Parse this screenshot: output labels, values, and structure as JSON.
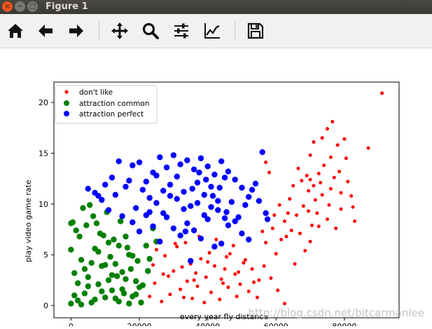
{
  "window": {
    "title": "Figure 1",
    "buttons": {
      "close": "×",
      "minimize": "−",
      "maximize": "□"
    }
  },
  "toolbar": {
    "items": [
      {
        "name": "home",
        "icon": "home-icon"
      },
      {
        "name": "back",
        "icon": "arrow-left-icon"
      },
      {
        "name": "forward",
        "icon": "arrow-right-icon"
      },
      {
        "name": "pan",
        "icon": "move-icon"
      },
      {
        "name": "zoom",
        "icon": "magnifier-icon"
      },
      {
        "name": "configure-subplots",
        "icon": "sliders-icon"
      },
      {
        "name": "edit-axis",
        "icon": "line-chart-icon"
      },
      {
        "name": "save",
        "icon": "floppy-disk-icon"
      }
    ]
  },
  "watermark": "http://blog.csdn.net/bitcarmanlee",
  "chart_data": {
    "type": "scatter",
    "xlabel": "every year fly distance",
    "ylabel": "play video game rate",
    "xlim": [
      -5000,
      96000
    ],
    "ylim": [
      -1.2,
      22
    ],
    "xticks": [
      "0",
      "20000",
      "40000",
      "60000",
      "80000"
    ],
    "yticks": [
      "0",
      "5",
      "10",
      "15",
      "20"
    ],
    "legend_position": "upper-left",
    "series": [
      {
        "name": "don't like",
        "color": "#ff0000",
        "marker_size": "small",
        "points": [
          [
            91000,
            20.9
          ],
          [
            87000,
            15.5
          ],
          [
            76500,
            18.1
          ],
          [
            75000,
            17.4
          ],
          [
            73500,
            16.5
          ],
          [
            80000,
            16.4
          ],
          [
            78000,
            15.8
          ],
          [
            71000,
            16.1
          ],
          [
            70000,
            14.8
          ],
          [
            66500,
            13.5
          ],
          [
            69000,
            12.8
          ],
          [
            73000,
            12.1
          ],
          [
            77000,
            12.6
          ],
          [
            81000,
            12.2
          ],
          [
            82000,
            10.8
          ],
          [
            79000,
            9.5
          ],
          [
            83000,
            8.3
          ],
          [
            75000,
            8.5
          ],
          [
            72000,
            9.1
          ],
          [
            68000,
            9.8
          ],
          [
            64000,
            10.5
          ],
          [
            61000,
            9.9
          ],
          [
            62500,
            8.3
          ],
          [
            59000,
            7.6
          ],
          [
            57000,
            6.2
          ],
          [
            60000,
            5.1
          ],
          [
            63000,
            6.8
          ],
          [
            67000,
            7.1
          ],
          [
            70000,
            6.3
          ],
          [
            72500,
            7.8
          ],
          [
            71500,
            10.4
          ],
          [
            69500,
            11.3
          ],
          [
            65000,
            11.8
          ],
          [
            58000,
            13.1
          ],
          [
            57000,
            14.1
          ],
          [
            55000,
            2.5
          ],
          [
            53000,
            3.6
          ],
          [
            50500,
            4.2
          ],
          [
            48000,
            3.1
          ],
          [
            46000,
            1.8
          ],
          [
            44000,
            2.6
          ],
          [
            42000,
            3.9
          ],
          [
            40500,
            5.2
          ],
          [
            38000,
            4.6
          ],
          [
            36500,
            3.2
          ],
          [
            34000,
            2.4
          ],
          [
            32000,
            1.6
          ],
          [
            30000,
            3.4
          ],
          [
            27500,
            4.9
          ],
          [
            26000,
            6.4
          ],
          [
            24500,
            2.2
          ],
          [
            23000,
            0.9
          ],
          [
            25000,
            5.5
          ],
          [
            29000,
            1.1
          ],
          [
            31000,
            5.8
          ],
          [
            33500,
            6.2
          ],
          [
            35500,
            0.7
          ],
          [
            37000,
            1.9
          ],
          [
            39000,
            0.3
          ],
          [
            41000,
            1.3
          ],
          [
            43500,
            0.6
          ],
          [
            45500,
            4.8
          ],
          [
            47500,
            5.9
          ],
          [
            49500,
            2.1
          ],
          [
            52000,
            1.4
          ],
          [
            54500,
            0.8
          ],
          [
            56500,
            3.9
          ],
          [
            58500,
            2.7
          ],
          [
            60500,
            1.5
          ],
          [
            62500,
            0.2
          ],
          [
            49000,
            3.3
          ],
          [
            51000,
            4.5
          ],
          [
            45000,
            3.6
          ],
          [
            39500,
            2.8
          ],
          [
            35000,
            4.1
          ],
          [
            28500,
            2.9
          ],
          [
            26500,
            0.4
          ],
          [
            33000,
            0.8
          ],
          [
            42500,
            6.5
          ],
          [
            37500,
            6.8
          ],
          [
            30500,
            6.1
          ],
          [
            44500,
            2.2
          ],
          [
            48500,
            0.9
          ],
          [
            53500,
            2.3
          ],
          [
            46500,
            5.1
          ],
          [
            40000,
            4.3
          ],
          [
            36000,
            2.5
          ],
          [
            32500,
            3.8
          ],
          [
            27000,
            3.1
          ],
          [
            24000,
            4.0
          ],
          [
            74000,
            13.8
          ],
          [
            76000,
            11.5
          ],
          [
            78500,
            13.2
          ],
          [
            80500,
            14.5
          ],
          [
            66000,
            8.9
          ],
          [
            64500,
            7.4
          ],
          [
            61500,
            6.5
          ],
          [
            67500,
            12.3
          ],
          [
            69500,
            9.3
          ],
          [
            73500,
            10.9
          ],
          [
            71000,
            11.8
          ],
          [
            75500,
            9.9
          ],
          [
            77500,
            7.6
          ],
          [
            68500,
            5.4
          ],
          [
            65500,
            4.1
          ],
          [
            70500,
            7.9
          ],
          [
            63500,
            9.1
          ],
          [
            59500,
            8.9
          ],
          [
            56000,
            7.3
          ],
          [
            72500,
            13.0
          ],
          [
            76000,
            14.6
          ],
          [
            79000,
            11.1
          ],
          [
            82500,
            9.7
          ],
          [
            70000,
            12.4
          ]
        ]
      },
      {
        "name": "attraction common",
        "color": "#008000",
        "marker_size": "large",
        "points": [
          [
            0,
            0.2
          ],
          [
            2000,
            0.5
          ],
          [
            4000,
            1.2
          ],
          [
            6000,
            0.3
          ],
          [
            8000,
            2.1
          ],
          [
            10000,
            0.8
          ],
          [
            12000,
            1.5
          ],
          [
            14000,
            0.4
          ],
          [
            16000,
            2.6
          ],
          [
            18000,
            0.9
          ],
          [
            20000,
            1.8
          ],
          [
            1000,
            3.2
          ],
          [
            3000,
            4.5
          ],
          [
            5000,
            2.8
          ],
          [
            7000,
            5.6
          ],
          [
            9000,
            3.9
          ],
          [
            11000,
            6.2
          ],
          [
            13000,
            4.1
          ],
          [
            15000,
            3.3
          ],
          [
            17000,
            5.0
          ],
          [
            19000,
            2.4
          ],
          [
            0,
            5.5
          ],
          [
            2500,
            6.8
          ],
          [
            4500,
            7.9
          ],
          [
            6500,
            8.8
          ],
          [
            8500,
            7.1
          ],
          [
            10500,
            9.2
          ],
          [
            12500,
            6.5
          ],
          [
            14500,
            8.3
          ],
          [
            16500,
            5.7
          ],
          [
            500,
            8.2
          ],
          [
            1500,
            7.4
          ],
          [
            3500,
            9.6
          ],
          [
            5500,
            9.9
          ],
          [
            7500,
            8.1
          ],
          [
            9500,
            6.9
          ],
          [
            11500,
            4.8
          ],
          [
            13500,
            2.9
          ],
          [
            15500,
            1.2
          ],
          [
            17500,
            3.6
          ],
          [
            19500,
            4.4
          ],
          [
            21000,
            2.0
          ],
          [
            22000,
            5.9
          ],
          [
            23000,
            4.6
          ],
          [
            24000,
            7.6
          ],
          [
            20500,
            0.3
          ],
          [
            1000,
            1.0
          ],
          [
            3000,
            0.1
          ],
          [
            5000,
            1.9
          ],
          [
            7000,
            0.6
          ],
          [
            9000,
            1.4
          ],
          [
            11000,
            2.5
          ],
          [
            13000,
            0.7
          ],
          [
            15000,
            1.6
          ],
          [
            17000,
            0.2
          ],
          [
            19000,
            1.1
          ],
          [
            6000,
            4.2
          ],
          [
            8000,
            5.3
          ],
          [
            10000,
            4.0
          ],
          [
            12000,
            3.0
          ],
          [
            14000,
            5.9
          ],
          [
            16000,
            6.8
          ],
          [
            18000,
            4.9
          ],
          [
            4000,
            3.6
          ],
          [
            2000,
            2.2
          ],
          [
            0,
            8.1
          ],
          [
            25000,
            6.3
          ],
          [
            22500,
            3.4
          ]
        ]
      },
      {
        "name": "attraction perfect",
        "color": "#0000ff",
        "marker_size": "large",
        "points": [
          [
            31000,
            10.5
          ],
          [
            33000,
            11.2
          ],
          [
            35000,
            9.8
          ],
          [
            37000,
            12.1
          ],
          [
            39000,
            10.9
          ],
          [
            41000,
            11.7
          ],
          [
            43000,
            9.4
          ],
          [
            45000,
            12.6
          ],
          [
            47000,
            10.2
          ],
          [
            29000,
            11.9
          ],
          [
            27000,
            9.1
          ],
          [
            25000,
            12.8
          ],
          [
            23000,
            10.6
          ],
          [
            21000,
            11.4
          ],
          [
            19000,
            9.6
          ],
          [
            17000,
            12.3
          ],
          [
            15000,
            8.8
          ],
          [
            13000,
            10.9
          ],
          [
            11000,
            9.4
          ],
          [
            9000,
            10.4
          ],
          [
            7000,
            11.1
          ],
          [
            5000,
            11.5
          ],
          [
            49000,
            8.7
          ],
          [
            51000,
            9.9
          ],
          [
            53000,
            11.4
          ],
          [
            55000,
            10.3
          ],
          [
            57000,
            9.1
          ],
          [
            57500,
            8.5
          ],
          [
            30000,
            14.8
          ],
          [
            28000,
            13.6
          ],
          [
            32000,
            13.9
          ],
          [
            34000,
            14.3
          ],
          [
            36000,
            13.4
          ],
          [
            38000,
            14.5
          ],
          [
            40000,
            13.7
          ],
          [
            42000,
            12.9
          ],
          [
            44000,
            14.2
          ],
          [
            46000,
            13.2
          ],
          [
            48000,
            12.4
          ],
          [
            50000,
            11.6
          ],
          [
            52000,
            10.7
          ],
          [
            54000,
            12.0
          ],
          [
            56000,
            15.1
          ],
          [
            26000,
            14.6
          ],
          [
            24000,
            13.1
          ],
          [
            22000,
            12.2
          ],
          [
            20000,
            14.1
          ],
          [
            18000,
            13.8
          ],
          [
            16000,
            11.7
          ],
          [
            14000,
            14.2
          ],
          [
            12000,
            12.6
          ],
          [
            10000,
            11.9
          ],
          [
            8000,
            10.8
          ],
          [
            30000,
            7.6
          ],
          [
            32000,
            6.9
          ],
          [
            34000,
            8.1
          ],
          [
            36000,
            7.4
          ],
          [
            38000,
            6.6
          ],
          [
            40000,
            8.5
          ],
          [
            42000,
            5.8
          ],
          [
            44000,
            6.1
          ],
          [
            46000,
            7.9
          ],
          [
            48000,
            8.3
          ],
          [
            50000,
            7.1
          ],
          [
            52000,
            6.5
          ],
          [
            28000,
            8.7
          ],
          [
            26000,
            6.3
          ],
          [
            24000,
            7.8
          ],
          [
            22000,
            8.9
          ],
          [
            20000,
            7.3
          ],
          [
            18000,
            8.2
          ],
          [
            35000,
            4.4
          ],
          [
            33000,
            9.5
          ],
          [
            37000,
            10.1
          ],
          [
            39000,
            8.9
          ],
          [
            41000,
            9.7
          ],
          [
            43000,
            10.3
          ],
          [
            45000,
            8.6
          ],
          [
            31000,
            12.7
          ],
          [
            29000,
            10.8
          ],
          [
            27000,
            11.3
          ],
          [
            25000,
            10.1
          ],
          [
            23000,
            9.2
          ],
          [
            35500,
            11.5
          ],
          [
            37500,
            13.1
          ],
          [
            39500,
            12.4
          ],
          [
            41500,
            10.8
          ],
          [
            43500,
            11.6
          ],
          [
            33500,
            7.3
          ],
          [
            45500,
            9.2
          ]
        ]
      }
    ]
  }
}
